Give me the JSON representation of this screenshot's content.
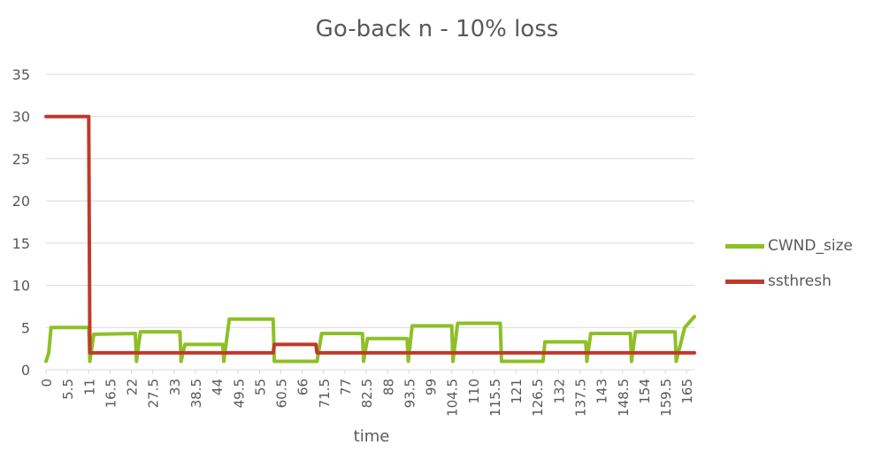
{
  "chart_data": {
    "type": "line",
    "title": "Go-back n - 10% loss",
    "xlabel": "time",
    "ylabel": "",
    "ylim": [
      0,
      35
    ],
    "xlim": [
      0,
      167
    ],
    "y_ticks": [
      "0",
      "5",
      "10",
      "15",
      "20",
      "25",
      "30",
      "35"
    ],
    "x_ticks": [
      {
        "label": "0",
        "value": 0
      },
      {
        "label": "5.5",
        "value": 5.5
      },
      {
        "label": "11",
        "value": 11
      },
      {
        "label": "16.5",
        "value": 16.5
      },
      {
        "label": "22",
        "value": 22
      },
      {
        "label": "27.5",
        "value": 27.5
      },
      {
        "label": "33",
        "value": 33
      },
      {
        "label": "38.5",
        "value": 38.5
      },
      {
        "label": "44",
        "value": 44
      },
      {
        "label": "49.5",
        "value": 49.5
      },
      {
        "label": "55",
        "value": 55
      },
      {
        "label": "60.5",
        "value": 60.5
      },
      {
        "label": "66",
        "value": 66
      },
      {
        "label": "71.5",
        "value": 71.5
      },
      {
        "label": "77",
        "value": 77
      },
      {
        "label": "82.5",
        "value": 82.5
      },
      {
        "label": "88",
        "value": 88
      },
      {
        "label": "93.5",
        "value": 93.5
      },
      {
        "label": "99",
        "value": 99
      },
      {
        "label": "104.5",
        "value": 104.5
      },
      {
        "label": "110",
        "value": 110
      },
      {
        "label": "115.5",
        "value": 115.5
      },
      {
        "label": "121",
        "value": 121
      },
      {
        "label": "126.5",
        "value": 126.5
      },
      {
        "label": "132",
        "value": 132
      },
      {
        "label": "137.5",
        "value": 137.5
      },
      {
        "label": "143",
        "value": 143
      },
      {
        "label": "148.5",
        "value": 148.5
      },
      {
        "label": "154",
        "value": 154
      },
      {
        "label": "159.5",
        "value": 159.5
      },
      {
        "label": "165",
        "value": 165
      }
    ],
    "grid": true,
    "legend_position": "right",
    "series": [
      {
        "name": "CWND_size",
        "color": "#8DC026",
        "points": [
          [
            0,
            1
          ],
          [
            0.7,
            2
          ],
          [
            1.3,
            5
          ],
          [
            11,
            5
          ],
          [
            11.3,
            1
          ],
          [
            12.3,
            4.2
          ],
          [
            23,
            4.3
          ],
          [
            23.3,
            1
          ],
          [
            24.3,
            4.5
          ],
          [
            34.5,
            4.5
          ],
          [
            34.8,
            1
          ],
          [
            35.8,
            3
          ],
          [
            45.5,
            3
          ],
          [
            45.8,
            1
          ],
          [
            47.2,
            6
          ],
          [
            58.5,
            6
          ],
          [
            58.8,
            1
          ],
          [
            69.5,
            1
          ],
          [
            69.8,
            1
          ],
          [
            71,
            4.3
          ],
          [
            81.5,
            4.3
          ],
          [
            81.8,
            1
          ],
          [
            82.8,
            3.7
          ],
          [
            93,
            3.7
          ],
          [
            93.3,
            1
          ],
          [
            94.3,
            5.2
          ],
          [
            104.5,
            5.2
          ],
          [
            104.8,
            1
          ],
          [
            106,
            5.5
          ],
          [
            117,
            5.5
          ],
          [
            117.3,
            1
          ],
          [
            128,
            1
          ],
          [
            128.5,
            3.3
          ],
          [
            139,
            3.3
          ],
          [
            139.3,
            1
          ],
          [
            140.3,
            4.3
          ],
          [
            150.5,
            4.3
          ],
          [
            150.8,
            1
          ],
          [
            151.8,
            4.5
          ],
          [
            162,
            4.5
          ],
          [
            162.3,
            1
          ],
          [
            164.5,
            5
          ],
          [
            167,
            6.3
          ]
        ]
      },
      {
        "name": "ssthresh",
        "color": "#C0392B",
        "points": [
          [
            0,
            30
          ],
          [
            11,
            30
          ],
          [
            11.3,
            2
          ],
          [
            58.5,
            2
          ],
          [
            58.8,
            3
          ],
          [
            69.5,
            3
          ],
          [
            69.8,
            2
          ],
          [
            167,
            2
          ]
        ]
      }
    ]
  }
}
